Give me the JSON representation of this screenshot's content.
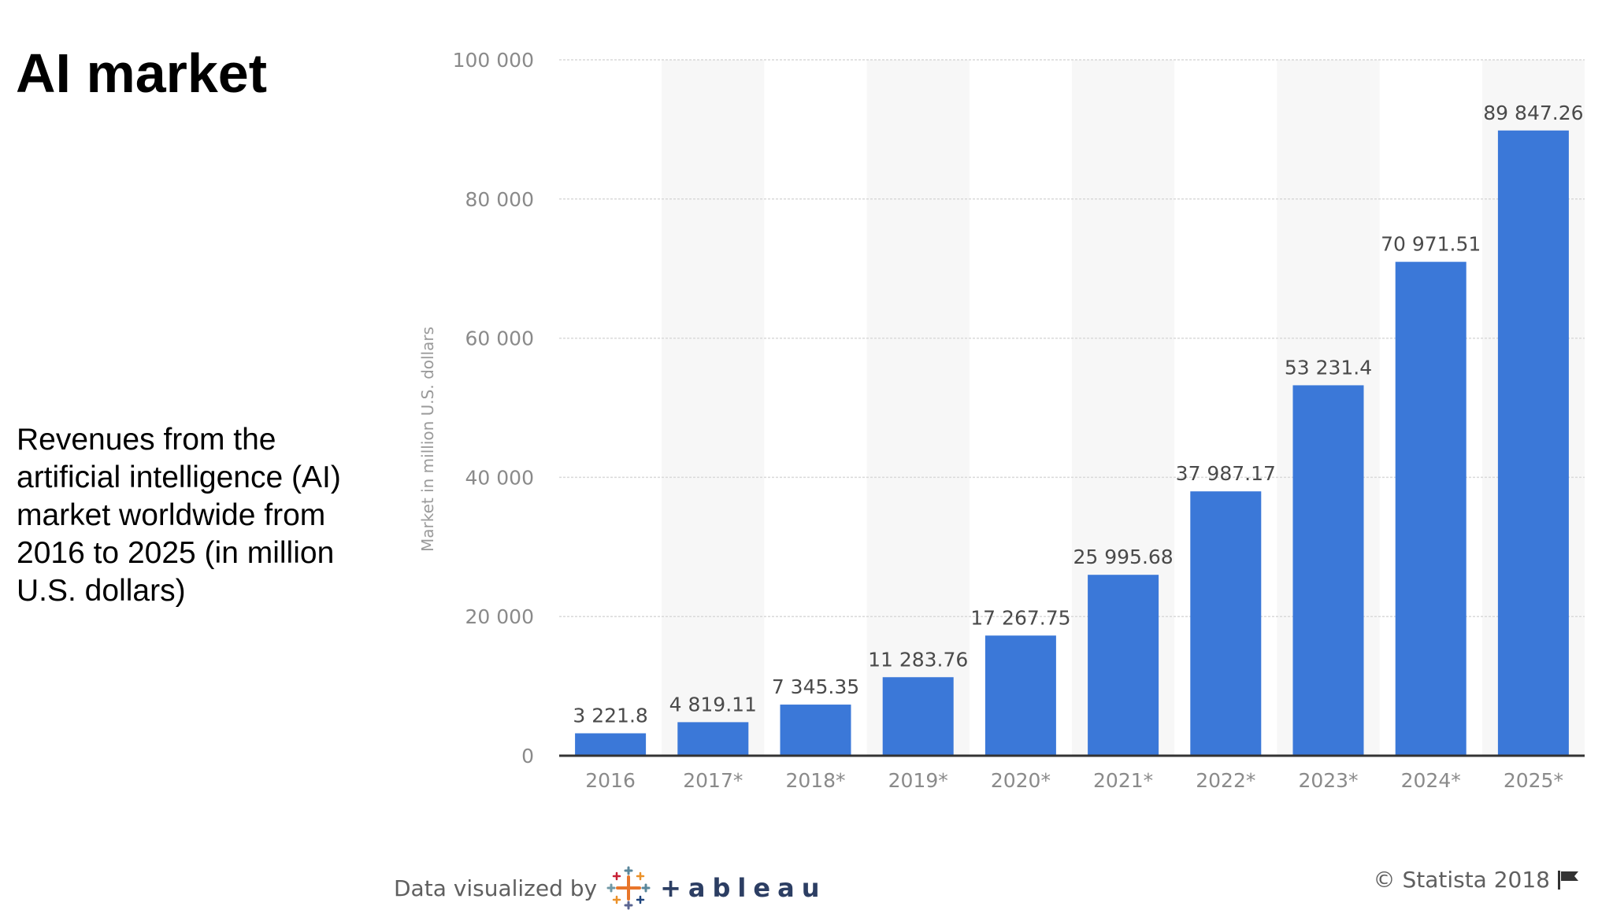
{
  "slide": {
    "title": "AI market",
    "description": "Revenues from the artificial intelligence (AI) market worldwide from 2016 to 2025 (in million U.S. dollars)"
  },
  "footer": {
    "visualized_by": "Data visualized by",
    "tableau_logo_text": "+ableau",
    "tableau_icon": "tableau-cross-icon",
    "copyright": "© Statista 2018",
    "flag_icon": "flag-icon"
  },
  "chart_data": {
    "type": "bar",
    "title": "",
    "xlabel": "",
    "ylabel": "Market in million U.S. dollars",
    "categories": [
      "2016",
      "2017*",
      "2018*",
      "2019*",
      "2020*",
      "2021*",
      "2022*",
      "2023*",
      "2024*",
      "2025*"
    ],
    "values": [
      3221.8,
      4819.11,
      7345.35,
      11283.76,
      17267.75,
      25995.68,
      37987.17,
      53231.4,
      70971.51,
      89847.26
    ],
    "value_labels": [
      "3 221.8",
      "4 819.11",
      "7 345.35",
      "11 283.76",
      "17 267.75",
      "25 995.68",
      "37 987.17",
      "53 231.4",
      "70 971.51",
      "89 847.26"
    ],
    "yticks": [
      0,
      20000,
      40000,
      60000,
      80000,
      100000
    ],
    "ytick_labels": [
      "0",
      "20 000",
      "40 000",
      "60 000",
      "80 000",
      "100 000"
    ],
    "ylim": [
      0,
      100000
    ],
    "grid": true,
    "legend": "none",
    "colors": {
      "bar": "#3b78d8",
      "band": "#f7f7f7",
      "grid": "#d9d9d9",
      "tick_text": "#8a8a8a",
      "label_text": "#4a4a4a"
    }
  }
}
